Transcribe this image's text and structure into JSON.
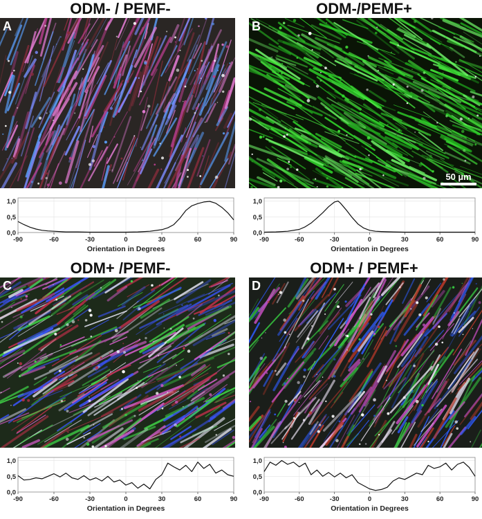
{
  "panels": [
    {
      "id": "A",
      "title": "ODM- / PEMF-",
      "letter": "A",
      "scale_label": "",
      "image": {
        "base": "#2a2624",
        "fibers": [
          "#b33d8a",
          "#e07ad0",
          "#8a2d3c",
          "#7b8cff",
          "#5aa0ff"
        ],
        "angle_deg": 68,
        "density": 0.7
      }
    },
    {
      "id": "B",
      "title": "ODM-/PEMF+",
      "letter": "B",
      "scale_label": "50 µm",
      "image": {
        "base": "#0a1406",
        "fibers": [
          "#2fd32a",
          "#44e63a",
          "#1fa31c",
          "#6df066"
        ],
        "angle_deg": -28,
        "density": 0.85
      }
    },
    {
      "id": "C",
      "title": "ODM+ /PEMF-",
      "letter": "C",
      "scale_label": "",
      "image": {
        "base": "#1d2a1a",
        "fibers": [
          "#3fd146",
          "#d35cc8",
          "#3a54ff",
          "#e0e0f0",
          "#c0304a"
        ],
        "angle_deg": 30,
        "density": 0.8
      }
    },
    {
      "id": "D",
      "title": "ODM+ / PEMF+",
      "letter": "D",
      "scale_label": "",
      "image": {
        "base": "#1a1e1a",
        "fibers": [
          "#c94fc4",
          "#35c43f",
          "#2e5cff",
          "#e8e0f0",
          "#b8382a"
        ],
        "angle_deg": 55,
        "density": 0.8
      }
    }
  ],
  "chart_data": [
    {
      "type": "line",
      "panel": "A",
      "xlabel": "Orientation in Degrees",
      "ylabel": "",
      "xlim": [
        -90,
        90
      ],
      "ylim": [
        0,
        1.1
      ],
      "x_ticks": [
        -90,
        -60,
        -30,
        0,
        30,
        60,
        90
      ],
      "y_ticks": [
        0.0,
        0.5,
        1.0
      ],
      "y_tick_labels": [
        "0,0",
        "0,5",
        "1,0"
      ],
      "grid": true,
      "series": [
        {
          "name": "",
          "x": [
            -90,
            -85,
            -80,
            -75,
            -70,
            -65,
            -60,
            -50,
            -40,
            -30,
            -20,
            -10,
            0,
            10,
            20,
            30,
            35,
            40,
            45,
            50,
            55,
            60,
            65,
            70,
            75,
            80,
            85,
            90
          ],
          "values": [
            0.35,
            0.25,
            0.17,
            0.11,
            0.07,
            0.05,
            0.04,
            0.02,
            0.02,
            0.01,
            0.01,
            0.01,
            0.01,
            0.02,
            0.04,
            0.09,
            0.15,
            0.25,
            0.45,
            0.7,
            0.85,
            0.92,
            0.97,
            0.99,
            0.93,
            0.8,
            0.63,
            0.4
          ]
        }
      ]
    },
    {
      "type": "line",
      "panel": "B",
      "xlabel": "Orientation in Degrees",
      "ylabel": "",
      "xlim": [
        -90,
        90
      ],
      "ylim": [
        0,
        1.1
      ],
      "x_ticks": [
        -90,
        -60,
        -30,
        0,
        30,
        60,
        90
      ],
      "y_ticks": [
        0.0,
        0.5,
        1.0
      ],
      "y_tick_labels": [
        "0,0",
        "0,5",
        "1,0"
      ],
      "grid": true,
      "series": [
        {
          "name": "",
          "x": [
            -90,
            -80,
            -70,
            -60,
            -55,
            -50,
            -45,
            -40,
            -35,
            -30,
            -27,
            -25,
            -20,
            -15,
            -10,
            -5,
            0,
            5,
            10,
            20,
            30,
            40,
            50,
            60,
            70,
            80,
            90
          ],
          "values": [
            0.01,
            0.02,
            0.04,
            0.1,
            0.18,
            0.3,
            0.46,
            0.63,
            0.82,
            0.97,
            1.0,
            0.94,
            0.72,
            0.48,
            0.27,
            0.14,
            0.07,
            0.04,
            0.03,
            0.02,
            0.01,
            0.01,
            0.01,
            0.01,
            0.01,
            0.01,
            0.01
          ]
        }
      ]
    },
    {
      "type": "line",
      "panel": "C",
      "xlabel": "Orientation in Degrees",
      "ylabel": "",
      "xlim": [
        -90,
        90
      ],
      "ylim": [
        0,
        1.1
      ],
      "x_ticks": [
        -90,
        -60,
        -30,
        0,
        30,
        60,
        90
      ],
      "y_ticks": [
        0.0,
        0.5,
        1.0
      ],
      "y_tick_labels": [
        "0,0",
        "0,5",
        "1,0"
      ],
      "grid": true,
      "series": [
        {
          "name": "",
          "x": [
            -90,
            -85,
            -80,
            -75,
            -70,
            -65,
            -60,
            -55,
            -50,
            -45,
            -40,
            -35,
            -30,
            -25,
            -20,
            -15,
            -10,
            -5,
            0,
            5,
            10,
            15,
            20,
            25,
            30,
            35,
            40,
            45,
            50,
            55,
            60,
            65,
            70,
            75,
            80,
            85,
            90
          ],
          "values": [
            0.52,
            0.38,
            0.4,
            0.45,
            0.42,
            0.5,
            0.58,
            0.48,
            0.6,
            0.45,
            0.4,
            0.52,
            0.38,
            0.45,
            0.35,
            0.5,
            0.32,
            0.38,
            0.22,
            0.3,
            0.12,
            0.25,
            0.1,
            0.4,
            0.55,
            0.92,
            0.8,
            0.7,
            0.85,
            0.65,
            0.95,
            0.75,
            0.88,
            0.6,
            0.7,
            0.55,
            0.5
          ]
        }
      ]
    },
    {
      "type": "line",
      "panel": "D",
      "xlabel": "Orientation in Degrees",
      "ylabel": "",
      "xlim": [
        -90,
        90
      ],
      "ylim": [
        0,
        1.1
      ],
      "x_ticks": [
        -90,
        -60,
        -30,
        0,
        30,
        60,
        90
      ],
      "y_ticks": [
        0.0,
        0.5,
        1.0
      ],
      "y_tick_labels": [
        "0,0",
        "0,5",
        "1,0"
      ],
      "grid": true,
      "series": [
        {
          "name": "",
          "x": [
            -90,
            -85,
            -80,
            -75,
            -70,
            -65,
            -60,
            -55,
            -50,
            -45,
            -40,
            -35,
            -30,
            -25,
            -20,
            -15,
            -10,
            -5,
            0,
            5,
            10,
            15,
            20,
            25,
            30,
            35,
            40,
            45,
            50,
            55,
            60,
            65,
            70,
            75,
            80,
            85,
            90
          ],
          "values": [
            0.65,
            0.95,
            0.85,
            1.0,
            0.88,
            0.95,
            0.8,
            0.92,
            0.55,
            0.7,
            0.5,
            0.62,
            0.48,
            0.6,
            0.45,
            0.55,
            0.3,
            0.2,
            0.1,
            0.05,
            0.08,
            0.15,
            0.35,
            0.45,
            0.4,
            0.5,
            0.6,
            0.55,
            0.85,
            0.75,
            0.8,
            0.92,
            0.7,
            0.88,
            0.95,
            0.78,
            0.5
          ]
        }
      ]
    }
  ]
}
